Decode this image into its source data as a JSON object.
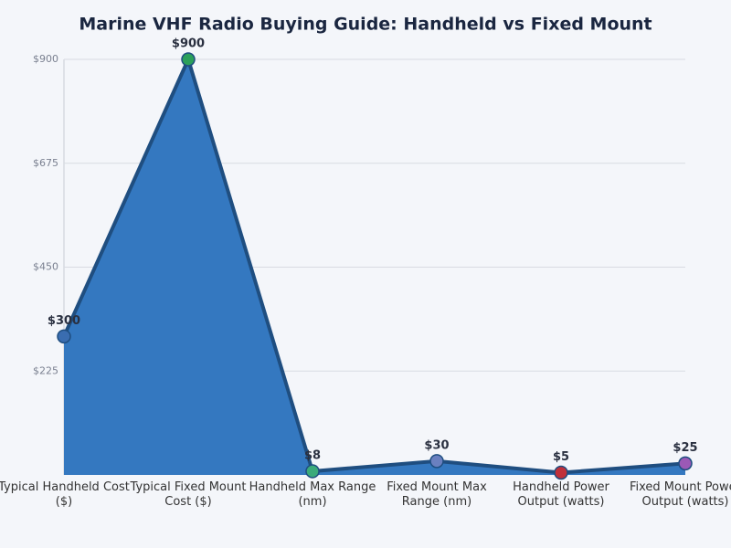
{
  "chart_data": {
    "type": "area",
    "title": "Marine VHF Radio Buying Guide: Handheld vs Fixed Mount",
    "categories": [
      "Typical Handheld Cost ($)",
      "Typical Fixed Mount Cost ($)",
      "Handheld Max Range (nm)",
      "Fixed Mount Max Range (nm)",
      "Handheld Power Output (watts)",
      "Fixed Mount Power Output (watts)"
    ],
    "values": [
      300,
      900,
      8,
      30,
      5,
      25
    ],
    "value_labels": [
      "$300",
      "$900",
      "$8",
      "$30",
      "$5",
      "$25"
    ],
    "color": "#3478c0",
    "line_color": "#1f4e80",
    "point_colors": [
      "#3a6db0",
      "#2ca05a",
      "#3aaa7a",
      "#6a80c0",
      "#c0303a",
      "#9b59b6"
    ],
    "ylim": [
      0,
      900
    ],
    "yticks": [
      {
        "value": 225,
        "label": "$225"
      },
      {
        "value": 450,
        "label": "$450"
      },
      {
        "value": 675,
        "label": "$675"
      },
      {
        "value": 900,
        "label": "$900"
      }
    ],
    "grid": true
  }
}
